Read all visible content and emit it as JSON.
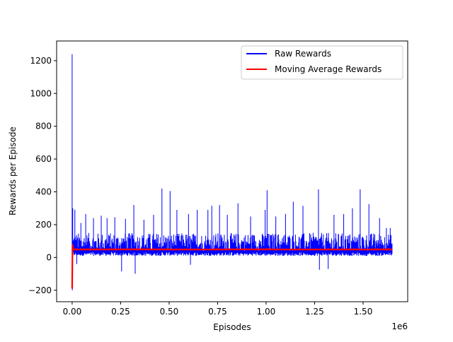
{
  "chart_data": {
    "type": "line",
    "title": "",
    "xlabel": "Episodes",
    "ylabel": "Rewards per Episode",
    "x_offset_label": "1e6",
    "xlim": [
      -80000,
      1730000
    ],
    "ylim": [
      -270,
      1320
    ],
    "x_ticks": [
      {
        "value": 0,
        "label": "0.00"
      },
      {
        "value": 250000,
        "label": "0.25"
      },
      {
        "value": 500000,
        "label": "0.50"
      },
      {
        "value": 750000,
        "label": "0.75"
      },
      {
        "value": 1000000,
        "label": "1.00"
      },
      {
        "value": 1250000,
        "label": "1.25"
      },
      {
        "value": 1500000,
        "label": "1.50"
      }
    ],
    "y_ticks": [
      {
        "value": -200,
        "label": "−200"
      },
      {
        "value": 0,
        "label": "0"
      },
      {
        "value": 200,
        "label": "200"
      },
      {
        "value": 400,
        "label": "400"
      },
      {
        "value": 600,
        "label": "600"
      },
      {
        "value": 800,
        "label": "800"
      },
      {
        "value": 1000,
        "label": "1000"
      },
      {
        "value": 1200,
        "label": "1200"
      }
    ],
    "grid": false,
    "legend_position": "top-right",
    "series": [
      {
        "name": "Raw Rewards",
        "color": "#0000ff",
        "x_range": [
          0,
          1650000
        ],
        "typical_band": [
          10,
          150
        ],
        "notable_points": [
          {
            "x": 0,
            "y": 1240
          },
          {
            "x": 1000,
            "y": -200
          },
          {
            "x": 3000,
            "y": 300
          },
          {
            "x": 14000,
            "y": 290
          },
          {
            "x": 24000,
            "y": -40
          },
          {
            "x": 45000,
            "y": 210
          },
          {
            "x": 70000,
            "y": 265
          },
          {
            "x": 110000,
            "y": 240
          },
          {
            "x": 150000,
            "y": 255
          },
          {
            "x": 180000,
            "y": 240
          },
          {
            "x": 220000,
            "y": 245
          },
          {
            "x": 255000,
            "y": -85
          },
          {
            "x": 275000,
            "y": 235
          },
          {
            "x": 318000,
            "y": 320
          },
          {
            "x": 325000,
            "y": -100
          },
          {
            "x": 370000,
            "y": 230
          },
          {
            "x": 420000,
            "y": 260
          },
          {
            "x": 463000,
            "y": 420
          },
          {
            "x": 505000,
            "y": 405
          },
          {
            "x": 540000,
            "y": 290
          },
          {
            "x": 600000,
            "y": 265
          },
          {
            "x": 610000,
            "y": -45
          },
          {
            "x": 645000,
            "y": 290
          },
          {
            "x": 700000,
            "y": 290
          },
          {
            "x": 720000,
            "y": 315
          },
          {
            "x": 760000,
            "y": 320
          },
          {
            "x": 800000,
            "y": 260
          },
          {
            "x": 855000,
            "y": 330
          },
          {
            "x": 920000,
            "y": 250
          },
          {
            "x": 995000,
            "y": 290
          },
          {
            "x": 1005000,
            "y": 410
          },
          {
            "x": 1050000,
            "y": 250
          },
          {
            "x": 1100000,
            "y": 265
          },
          {
            "x": 1140000,
            "y": 340
          },
          {
            "x": 1190000,
            "y": 315
          },
          {
            "x": 1270000,
            "y": 415
          },
          {
            "x": 1275000,
            "y": -75
          },
          {
            "x": 1320000,
            "y": -70
          },
          {
            "x": 1350000,
            "y": 260
          },
          {
            "x": 1400000,
            "y": 265
          },
          {
            "x": 1445000,
            "y": 300
          },
          {
            "x": 1485000,
            "y": 415
          },
          {
            "x": 1530000,
            "y": 325
          },
          {
            "x": 1585000,
            "y": 240
          },
          {
            "x": 1620000,
            "y": 180
          },
          {
            "x": 1640000,
            "y": 180
          }
        ]
      },
      {
        "name": "Moving Average Rewards",
        "color": "#ff0000",
        "x": [
          0,
          2000,
          5000,
          10000,
          30000,
          100000,
          300000,
          600000,
          900000,
          1200000,
          1500000,
          1650000
        ],
        "values": [
          -190,
          80,
          50,
          48,
          48,
          48,
          49,
          48,
          49,
          48,
          48,
          48
        ]
      }
    ]
  }
}
